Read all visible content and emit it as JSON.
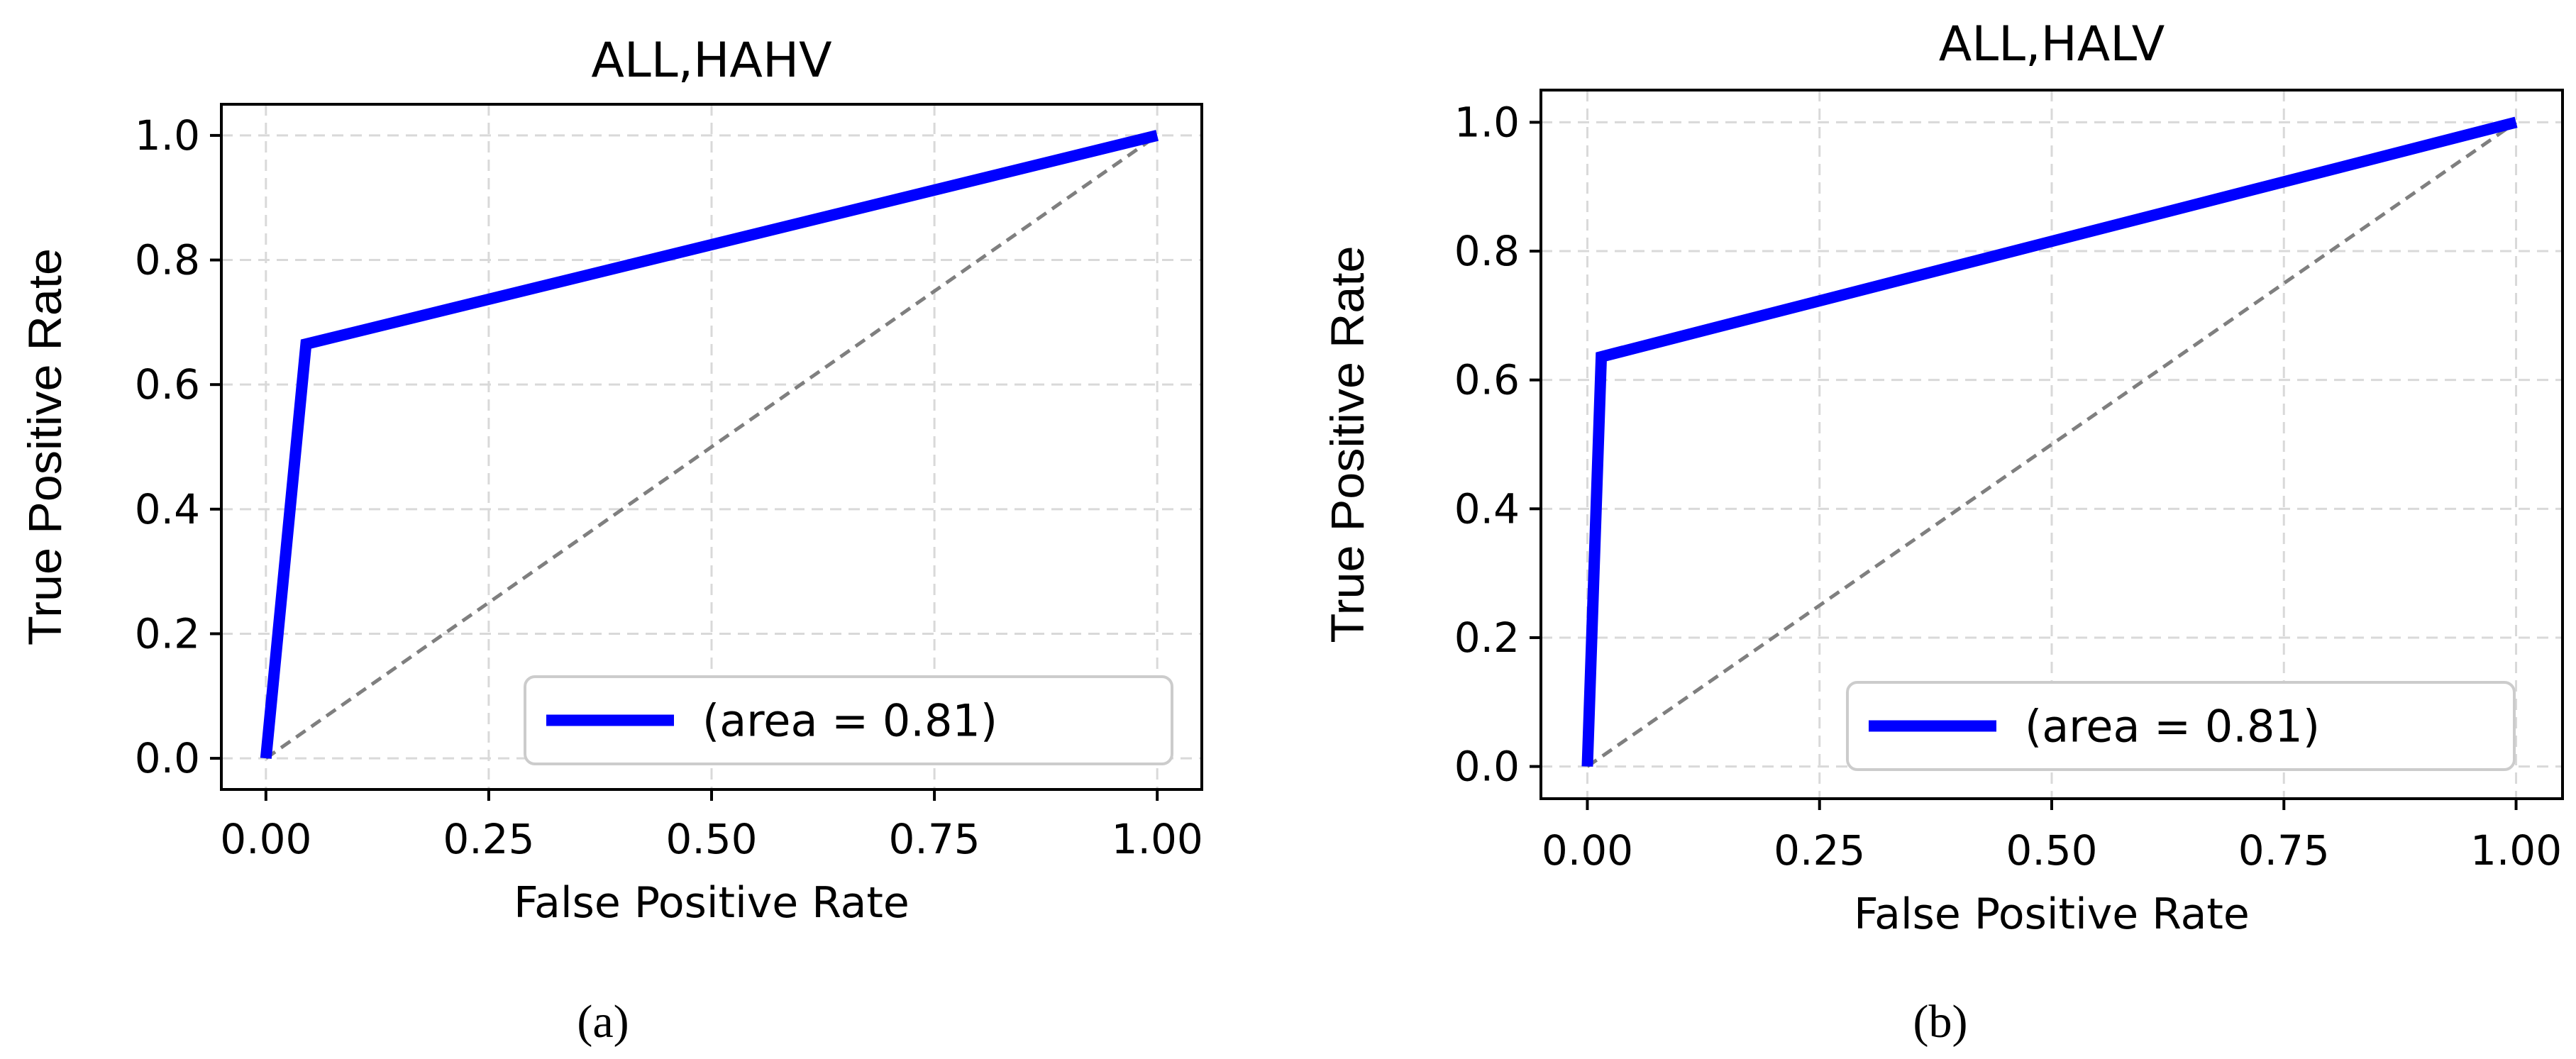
{
  "chart_data": [
    {
      "type": "line",
      "title": "ALL,HAHV",
      "xlabel": "False Positive Rate",
      "ylabel": "True Positive Rate",
      "xlim": [
        -0.05,
        1.05
      ],
      "ylim": [
        -0.05,
        1.05
      ],
      "xticks": [
        0.0,
        0.25,
        0.5,
        0.75,
        1.0
      ],
      "xtick_labels": [
        "0.00",
        "0.25",
        "0.50",
        "0.75",
        "1.00"
      ],
      "yticks": [
        0.0,
        0.2,
        0.4,
        0.6,
        0.8,
        1.0
      ],
      "ytick_labels": [
        "0.0",
        "0.2",
        "0.4",
        "0.6",
        "0.8",
        "1.0"
      ],
      "grid": true,
      "legend_position": "lower-right",
      "series": [
        {
          "name": "(area = 0.81)",
          "color": "#0000ff",
          "x": [
            0.0,
            0.045,
            1.0
          ],
          "y": [
            0.0,
            0.665,
            1.0
          ]
        }
      ],
      "reference_line": {
        "x": [
          0.0,
          1.0
        ],
        "y": [
          0.0,
          1.0
        ],
        "color": "#7f7f7f"
      },
      "caption": "(a)"
    },
    {
      "type": "line",
      "title": "ALL,HALV",
      "xlabel": "False Positive Rate",
      "ylabel": "True Positive Rate",
      "xlim": [
        -0.05,
        1.05
      ],
      "ylim": [
        -0.05,
        1.05
      ],
      "xticks": [
        0.0,
        0.25,
        0.5,
        0.75,
        1.0
      ],
      "xtick_labels": [
        "0.00",
        "0.25",
        "0.50",
        "0.75",
        "1.00"
      ],
      "yticks": [
        0.0,
        0.2,
        0.4,
        0.6,
        0.8,
        1.0
      ],
      "ytick_labels": [
        "0.0",
        "0.2",
        "0.4",
        "0.6",
        "0.8",
        "1.0"
      ],
      "grid": true,
      "legend_position": "lower-right",
      "series": [
        {
          "name": "(area = 0.81)",
          "color": "#0000ff",
          "x": [
            0.0,
            0.015,
            1.0
          ],
          "y": [
            0.0,
            0.636,
            1.0
          ]
        }
      ],
      "reference_line": {
        "x": [
          0.0,
          1.0
        ],
        "y": [
          0.0,
          1.0
        ],
        "color": "#7f7f7f"
      },
      "caption": "(b)"
    }
  ]
}
